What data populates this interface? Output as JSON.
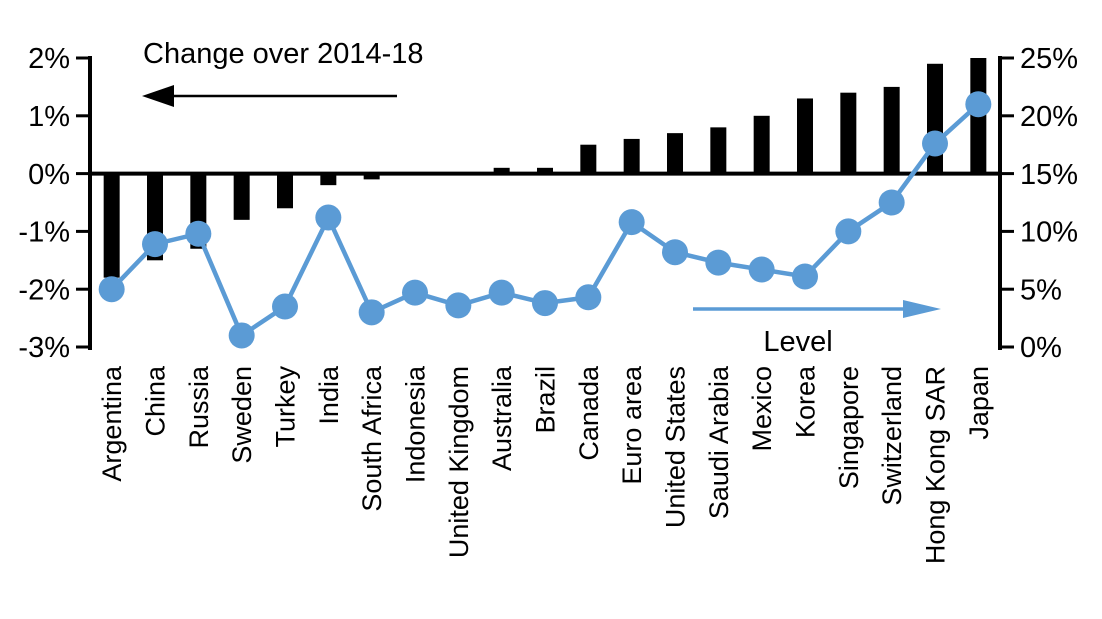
{
  "chart_data": {
    "type": "bar",
    "subtype": "combo-bar-line-dual-axis",
    "title": "",
    "categories": [
      "Argentina",
      "China",
      "Russia",
      "Sweden",
      "Turkey",
      "India",
      "South Africa",
      "Indonesia",
      "United Kingdom",
      "Australia",
      "Brazil",
      "Canada",
      "Euro area",
      "United States",
      "Saudi Arabia",
      "Mexico",
      "Korea",
      "Singapore",
      "Switzerland",
      "Hong Kong SAR",
      "Japan"
    ],
    "series": [
      {
        "name": "Change over 2014-18",
        "type": "bar",
        "axis": "left",
        "color": "#000000",
        "values": [
          -1.8,
          -1.5,
          -1.3,
          -0.8,
          -0.6,
          -0.2,
          -0.1,
          0,
          0,
          0.1,
          0.1,
          0.5,
          0.6,
          0.7,
          0.8,
          1.0,
          1.3,
          1.4,
          1.5,
          1.9,
          2.0
        ]
      },
      {
        "name": "Level",
        "type": "line",
        "axis": "right",
        "color": "#5B9BD5",
        "values": [
          5.0,
          8.9,
          9.8,
          1.0,
          3.5,
          11.2,
          3.0,
          4.7,
          3.6,
          4.7,
          3.8,
          4.3,
          10.8,
          8.2,
          7.3,
          6.7,
          6.1,
          10.0,
          12.5,
          17.6,
          21.0
        ]
      }
    ],
    "left_axis": {
      "min": -3,
      "max": 2,
      "tick_step": 1,
      "tick_labels": [
        "2%",
        "1%",
        "0%",
        "-1%",
        "-2%",
        "-3%"
      ]
    },
    "right_axis": {
      "min": 0,
      "max": 25,
      "tick_step": 5,
      "tick_labels": [
        "25%",
        "20%",
        "15%",
        "10%",
        "5%",
        "0%"
      ]
    },
    "grid": false,
    "legend_position": "none",
    "annotations": {
      "bar_label": {
        "text": "Change over 2014-18",
        "arrow_direction": "left",
        "color": "#000000"
      },
      "line_label": {
        "text": "Level",
        "arrow_direction": "right",
        "color": "#5B9BD5"
      }
    }
  },
  "colors": {
    "background": "#FFFFFF",
    "bar": "#000000",
    "line": "#5B9BD5",
    "axis": "#000000"
  }
}
